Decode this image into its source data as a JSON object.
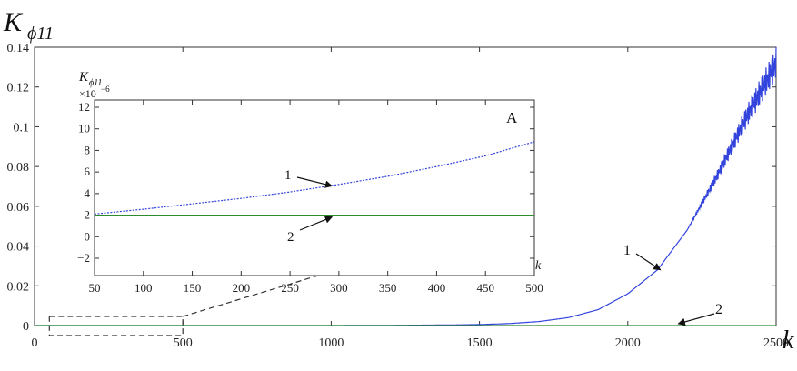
{
  "chart_data": [
    {
      "type": "line",
      "ylabel_main": "K",
      "ylabel_sub": "ϕ11",
      "xlabel": "k",
      "xlim": [
        0,
        2500
      ],
      "ylim": [
        -0.01,
        0.14
      ],
      "xticks": [
        "0",
        "500",
        "1000",
        "1500",
        "2000",
        "2500"
      ],
      "yticks": [
        "0",
        "0.02",
        "0.04",
        "0.06",
        "0.08",
        "0.1",
        "0.12",
        "0.14"
      ],
      "series": [
        {
          "name": "1",
          "color": "#3344dd",
          "x": [
            0,
            500,
            1000,
            1200,
            1400,
            1500,
            1600,
            1700,
            1800,
            1900,
            2000,
            2100,
            2200,
            2300,
            2400,
            2500
          ],
          "y": [
            0,
            0,
            0,
            0.0001,
            0.0003,
            0.0005,
            0.001,
            0.002,
            0.004,
            0.008,
            0.016,
            0.028,
            0.048,
            0.075,
            0.105,
            0.132
          ],
          "oscillation_start": 2200,
          "oscillation_amp": 0.008
        },
        {
          "name": "2",
          "color": "#2e8b2e",
          "x": [
            0,
            2500
          ],
          "y": [
            0,
            0
          ]
        }
      ],
      "annotations": [
        {
          "text": "1",
          "point_x": 2110,
          "point_y": 0.028
        },
        {
          "text": "2",
          "point_x": 2170,
          "point_y": 0.0
        }
      ],
      "zoom_box": {
        "x": [
          50,
          500
        ],
        "y": [
          -0.004,
          0.004
        ]
      }
    },
    {
      "type": "line",
      "inset_label": "A",
      "ylabel_main": "K",
      "ylabel_sub": "ϕ11",
      "scale_label": "×10",
      "scale_exp": "−6",
      "xlabel": "k",
      "xlim": [
        50,
        500
      ],
      "ylim": [
        -4,
        13
      ],
      "xticks": [
        "50",
        "100",
        "150",
        "200",
        "250",
        "300",
        "350",
        "400",
        "450",
        "500"
      ],
      "yticks": [
        "−2",
        "0",
        "2",
        "4",
        "6",
        "8",
        "10",
        "12"
      ],
      "series": [
        {
          "name": "1",
          "color": "#3344dd",
          "x": [
            50,
            100,
            150,
            200,
            250,
            300,
            350,
            400,
            450,
            500
          ],
          "y": [
            2.1,
            2.55,
            3.05,
            3.55,
            4.15,
            4.85,
            5.6,
            6.5,
            7.5,
            8.8
          ]
        },
        {
          "name": "2",
          "color": "#2e8b2e",
          "x": [
            50,
            500
          ],
          "y": [
            2.0,
            2.0
          ]
        }
      ],
      "annotations": [
        {
          "text": "1",
          "point_x": 293,
          "point_y": 4.7
        },
        {
          "text": "2",
          "point_x": 293,
          "point_y": 2.0
        }
      ]
    }
  ]
}
